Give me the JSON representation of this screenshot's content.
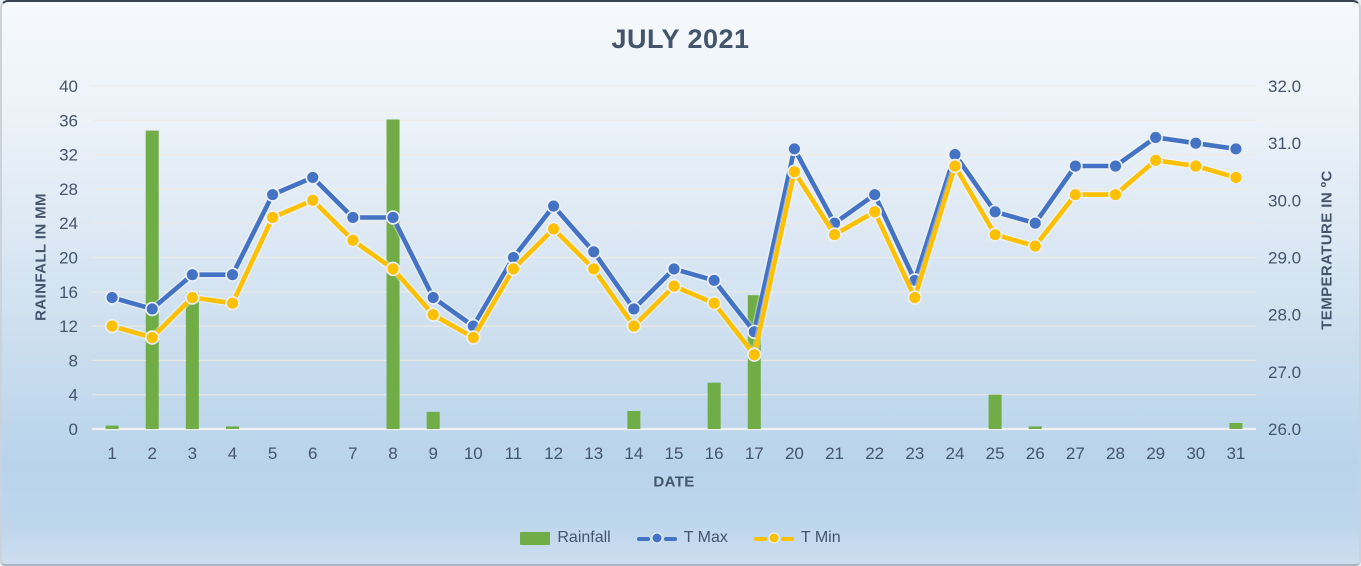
{
  "title": "JULY 2021",
  "axes": {
    "left_title": "RAINFALL IN MM",
    "right_title": "TEMPERATURE IN ºC",
    "x_title": "DATE",
    "left_ticks": [
      "0",
      "4",
      "8",
      "12",
      "16",
      "20",
      "24",
      "28",
      "32",
      "36",
      "40"
    ],
    "right_ticks": [
      "26.0",
      "27.0",
      "28.0",
      "29.0",
      "30.0",
      "31.0",
      "32.0"
    ]
  },
  "colors": {
    "rainfall": "#70AD47",
    "tmax": "#4472C4",
    "tmin": "#FFC000",
    "text": "#44546A",
    "gridline": "#EFEBE3",
    "zero_line": "#F2F2F2"
  },
  "chart_data": {
    "type": "combo (bar + line)",
    "title": "JULY 2021",
    "categories": [
      "1",
      "2",
      "3",
      "4",
      "5",
      "6",
      "7",
      "8",
      "9",
      "10",
      "11",
      "12",
      "13",
      "14",
      "15",
      "16",
      "17",
      "20",
      "21",
      "22",
      "23",
      "24",
      "25",
      "26",
      "27",
      "28",
      "29",
      "30",
      "31"
    ],
    "xlabel": "DATE",
    "left_axis": {
      "title": "RAINFALL IN MM",
      "min": 0,
      "max": 40,
      "step": 4
    },
    "right_axis": {
      "title": "TEMPERATURE IN ºC",
      "min": 26.0,
      "max": 32.0,
      "step": 1.0
    },
    "grid": "horizontal, at left-axis ticks",
    "legend_position": "bottom",
    "series": [
      {
        "name": "Rainfall",
        "type": "bar",
        "axis": "left",
        "color": "#70AD47",
        "values": [
          0.4,
          34.8,
          15.9,
          0.3,
          0,
          0,
          0,
          36.1,
          2.0,
          0,
          0,
          0,
          0,
          2.1,
          0,
          5.4,
          15.6,
          0,
          0,
          0,
          0,
          0,
          4.0,
          0.3,
          0,
          0,
          0,
          0,
          0.7
        ]
      },
      {
        "name": "T Max",
        "type": "line",
        "axis": "right",
        "color": "#4472C4",
        "values": [
          28.3,
          28.1,
          28.7,
          28.7,
          30.1,
          30.4,
          29.7,
          29.7,
          28.3,
          27.8,
          29.0,
          29.9,
          29.1,
          28.1,
          28.8,
          28.6,
          27.7,
          30.9,
          29.6,
          30.1,
          28.6,
          30.8,
          29.8,
          29.6,
          30.6,
          30.6,
          31.1,
          31.0,
          30.9
        ]
      },
      {
        "name": "T Min",
        "type": "line",
        "axis": "right",
        "color": "#FFC000",
        "values": [
          27.8,
          27.6,
          28.3,
          28.2,
          29.7,
          30.0,
          29.3,
          28.8,
          28.0,
          27.6,
          28.8,
          29.5,
          28.8,
          27.8,
          28.5,
          28.2,
          27.3,
          30.5,
          29.4,
          29.8,
          28.3,
          30.6,
          29.4,
          29.2,
          30.1,
          30.1,
          30.7,
          30.6,
          30.4
        ]
      }
    ]
  }
}
